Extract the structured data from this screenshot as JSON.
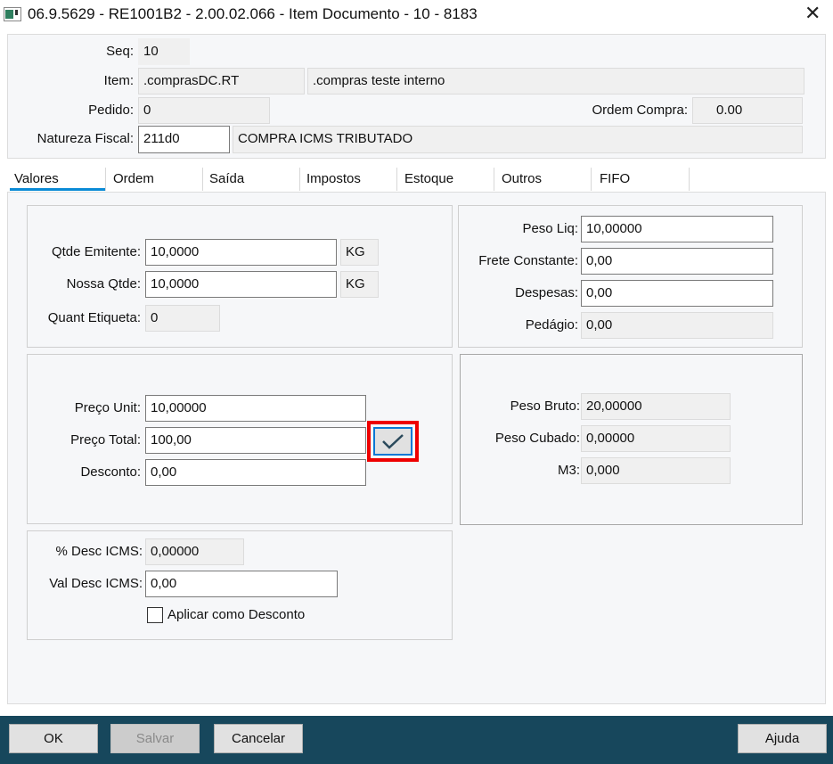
{
  "window": {
    "title": "06.9.5629 - RE1001B2 - 2.00.02.066 - Item Documento - 10 - 8183",
    "icon": "app-icon",
    "close_icon": "close-icon"
  },
  "header": {
    "seq_label": "Seq:",
    "seq_value": "10",
    "item_label": "Item:",
    "item_code": ".comprasDC.RT",
    "item_desc": ".compras teste interno",
    "pedido_label": "Pedido:",
    "pedido_value": "0",
    "ordem_compra_label": "Ordem Compra:",
    "ordem_compra_value": "0.00",
    "natureza_label": "Natureza Fiscal:",
    "natureza_code": "211d0",
    "natureza_desc": "COMPRA ICMS TRIBUTADO"
  },
  "tabs": [
    {
      "label": "Valores",
      "active": true
    },
    {
      "label": "Ordem"
    },
    {
      "label": "Saída"
    },
    {
      "label": "Impostos"
    },
    {
      "label": "Estoque"
    },
    {
      "label": "Outros"
    },
    {
      "label": "FIFO"
    }
  ],
  "valores": {
    "qtde_emitente_label": "Qtde Emitente:",
    "qtde_emitente": "10,0000",
    "qtde_emitente_unit": "KG",
    "nossa_qtde_label": "Nossa Qtde:",
    "nossa_qtde": "10,0000",
    "nossa_qtde_unit": "KG",
    "quant_etiqueta_label": "Quant Etiqueta:",
    "quant_etiqueta": "0",
    "peso_liq_label": "Peso Liq:",
    "peso_liq": "10,00000",
    "frete_label": "Frete Constante:",
    "frete": "0,00",
    "despesas_label": "Despesas:",
    "despesas": "0,00",
    "pedagio_label": "Pedágio:",
    "pedagio": "0,00",
    "preco_unit_label": "Preço Unit:",
    "preco_unit": "10,00000",
    "preco_total_label": "Preço Total:",
    "preco_total": "100,00",
    "desconto_label": "Desconto:",
    "desconto": "0,00",
    "peso_bruto_label": "Peso Bruto:",
    "peso_bruto": "20,00000",
    "peso_cubado_label": "Peso Cubado:",
    "peso_cubado": "0,00000",
    "m3_label": "M3:",
    "m3": "0,000",
    "desc_icms_pct_label": "% Desc ICMS:",
    "desc_icms_pct": "0,00000",
    "val_desc_icms_label": "Val Desc ICMS:",
    "val_desc_icms": "0,00",
    "aplicar_desconto_label": "Aplicar como Desconto",
    "aplicar_desconto_checked": false
  },
  "footer": {
    "ok": "OK",
    "salvar": "Salvar",
    "cancelar": "Cancelar",
    "ajuda": "Ajuda"
  },
  "colors": {
    "footer_bg": "#17475c",
    "tab_underline": "#0a8ad6",
    "highlight": "#ee0000"
  }
}
